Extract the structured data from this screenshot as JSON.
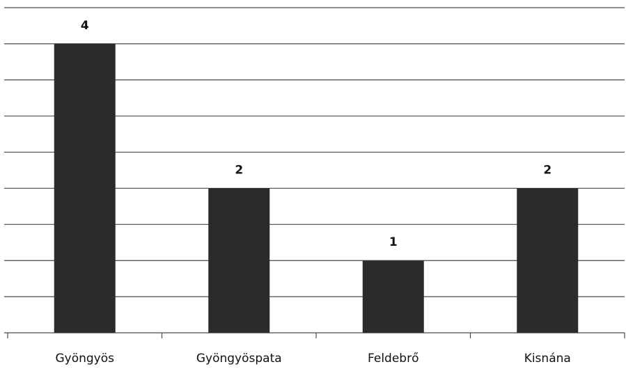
{
  "chart_data": {
    "type": "bar",
    "categories": [
      "Gyöngyös",
      "Gyöngyöspata",
      "Feldebrő",
      "Kisnána"
    ],
    "values": [
      4,
      2,
      1,
      2
    ],
    "color": "#2b2b2b",
    "ylim": [
      0,
      4.5
    ],
    "yticks": [
      0,
      0.5,
      1,
      1.5,
      2,
      2.5,
      3,
      3.5,
      4,
      4.5
    ],
    "grid": true
  }
}
